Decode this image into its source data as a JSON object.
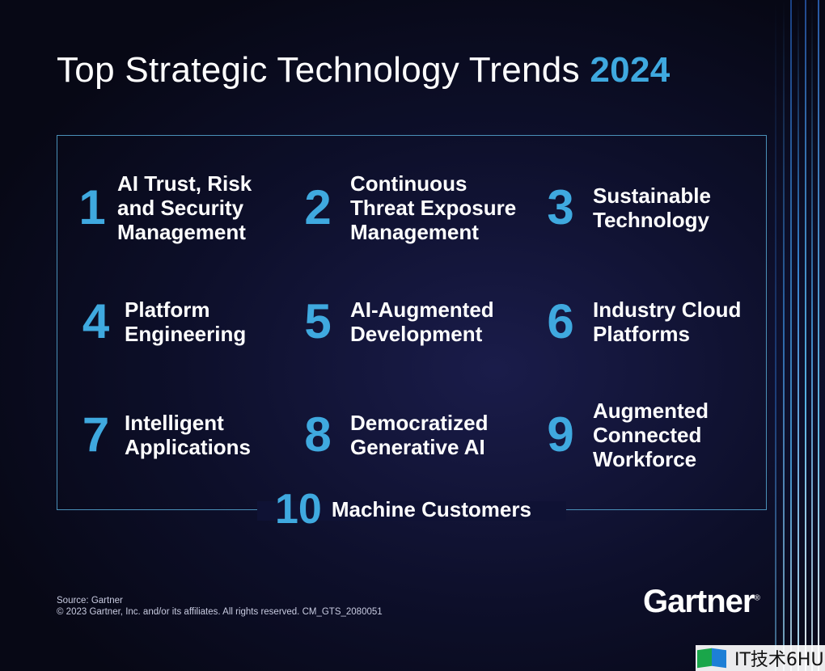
{
  "title": {
    "text": "Top Strategic Technology Trends",
    "year": "2024"
  },
  "trends": [
    {
      "number": "1",
      "label": "AI Trust, Risk\nand Security\nManagement"
    },
    {
      "number": "2",
      "label": "Continuous\nThreat Exposure\nManagement"
    },
    {
      "number": "3",
      "label": "Sustainable\nTechnology"
    },
    {
      "number": "4",
      "label": "Platform\nEngineering"
    },
    {
      "number": "5",
      "label": "AI-Augmented\nDevelopment"
    },
    {
      "number": "6",
      "label": "Industry Cloud\nPlatforms"
    },
    {
      "number": "7",
      "label": "Intelligent\nApplications"
    },
    {
      "number": "8",
      "label": "Democratized\nGenerative AI"
    },
    {
      "number": "9",
      "label": "Augmented\nConnected\nWorkforce"
    },
    {
      "number": "10",
      "label": "Machine Customers"
    }
  ],
  "footer": {
    "source": "Source: Gartner",
    "copyright": "© 2023 Gartner, Inc. and/or its affiliates. All rights reserved. CM_GTS_2080051"
  },
  "logo": {
    "text": "Gartner",
    "mark": "®"
  },
  "watermark": {
    "text": "IT技术6HU"
  },
  "colors": {
    "accent": "#3fa9df",
    "background": "#0d0f2a",
    "frame": "#4a90b8"
  }
}
